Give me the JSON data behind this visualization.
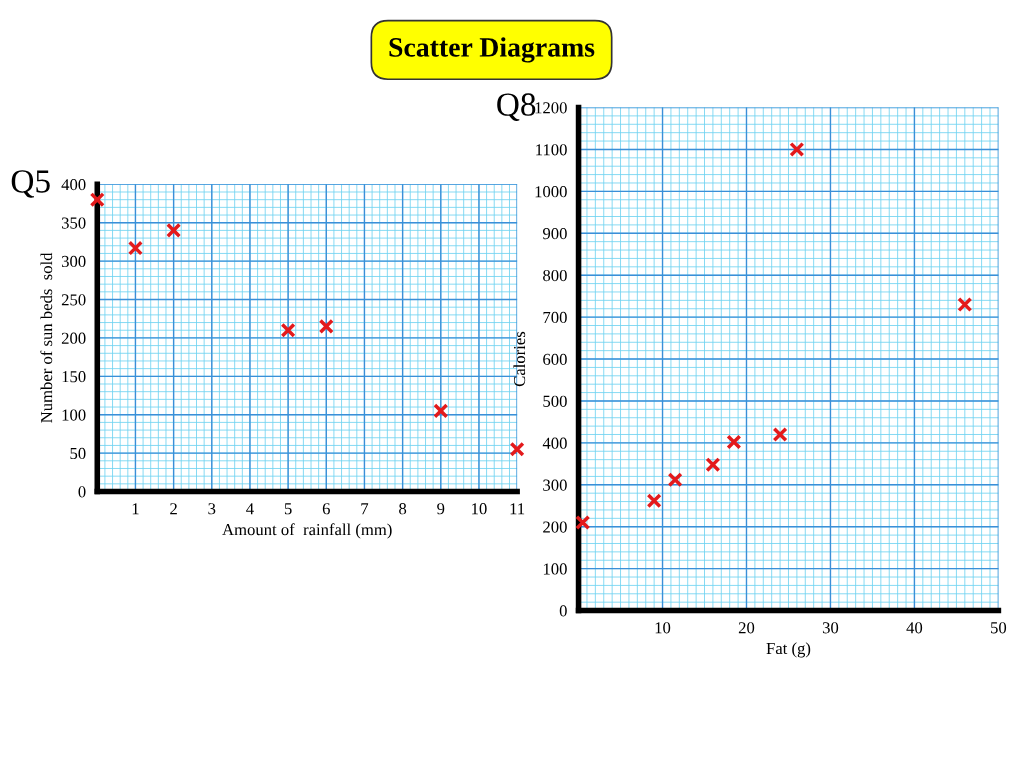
{
  "chart_data": [
    {
      "type": "scatter",
      "title": "Q5",
      "annotations": [
        "Scatter Diagrams"
      ],
      "xlabel": "Amount of  rainfall (mm)",
      "ylabel": "Number of sun beds  sold",
      "x": [
        0,
        1,
        2,
        5,
        6,
        9,
        11
      ],
      "values": [
        380,
        317,
        340,
        210,
        215,
        105,
        55
      ],
      "color": "#e31a1c",
      "marker": "cross",
      "xlim": [
        0,
        11
      ],
      "ylim": [
        0,
        400
      ],
      "xticks": [
        1,
        2,
        3,
        4,
        5,
        6,
        7,
        8,
        9,
        10,
        11
      ],
      "yticks": [
        0,
        50,
        100,
        150,
        200,
        250,
        300,
        350,
        400
      ],
      "grid": true
    },
    {
      "type": "scatter",
      "title": "Q8",
      "xlabel": "Fat (g)",
      "ylabel": "Calories",
      "x": [
        0.5,
        9,
        11.5,
        16,
        18.5,
        24,
        26,
        46
      ],
      "values": [
        210,
        262,
        312,
        348,
        402,
        420,
        1100,
        730
      ],
      "color": "#e31a1c",
      "marker": "cross",
      "xlim": [
        0,
        50
      ],
      "ylim": [
        0,
        1200
      ],
      "xticks": [
        10,
        20,
        30,
        40,
        50
      ],
      "yticks": [
        0,
        100,
        200,
        300,
        400,
        500,
        600,
        700,
        800,
        900,
        1000,
        1100,
        1200
      ],
      "grid": true
    }
  ]
}
